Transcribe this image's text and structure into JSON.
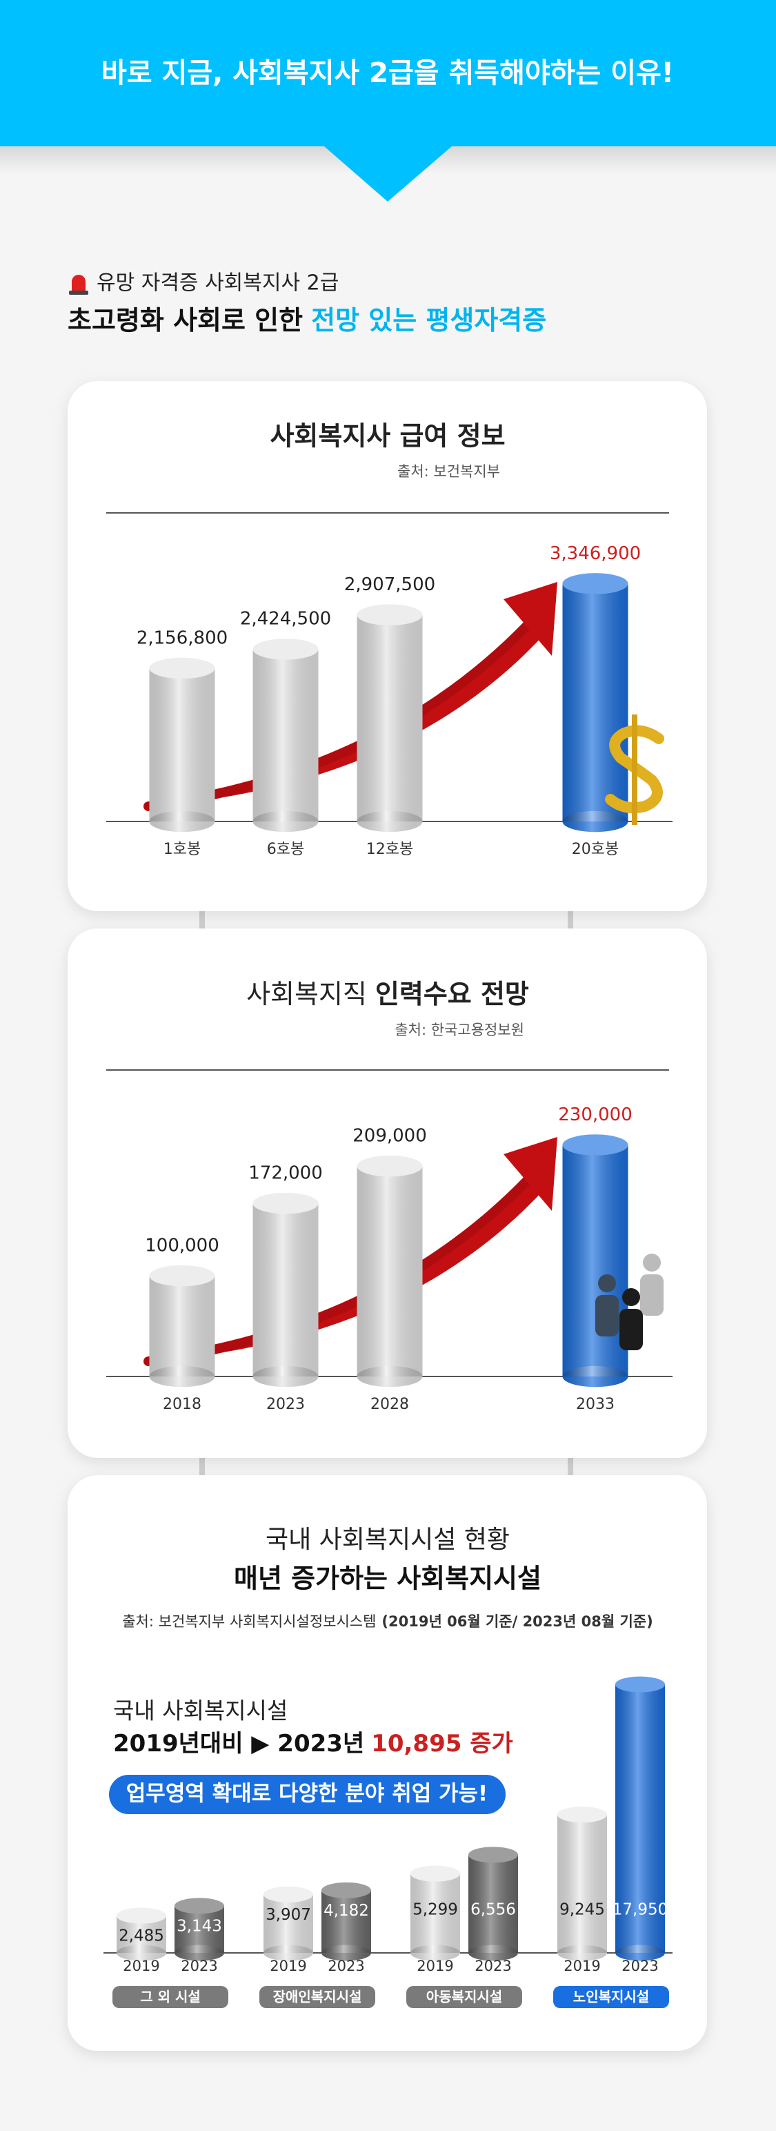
{
  "header": {
    "title": "바로 지금, 사회복지사 2급을 취득해야하는 이유!"
  },
  "intro": {
    "label": "유망 자격증 사회복지사 2급",
    "headline": "초고령화 사회로 인한",
    "headline_emphasis": "전망 있는 평생자격증"
  },
  "chart_data": [
    {
      "type": "bar",
      "title": "사회복지사 급여 정보",
      "source": "출처: 보건복지부",
      "categories": [
        "1호봉",
        "6호봉",
        "12호봉",
        "20호봉"
      ],
      "values": [
        2156800,
        2424500,
        2907500,
        3346900
      ],
      "value_labels": [
        "2,156,800",
        "2,424,500",
        "2,907,500",
        "3,346,900"
      ],
      "color": "#e4e4e4",
      "highlight_index": 3,
      "highlight_color": "#1a6fe0",
      "label_highlight_color": "#cc1f1f",
      "ylim": [
        0,
        3400000
      ]
    },
    {
      "type": "bar",
      "title": "사회복지직",
      "title_emphasis": "인력수요 전망",
      "source": "출처: 한국고용정보원",
      "categories": [
        "2018",
        "2023",
        "2028",
        "2033"
      ],
      "values": [
        100000,
        172000,
        209000,
        230000
      ],
      "value_labels": [
        "100,000",
        "172,000",
        "209,000",
        "230,000"
      ],
      "color": "#e4e4e4",
      "highlight_index": 3,
      "highlight_color": "#1a6fe0",
      "label_highlight_color": "#cc1f1f",
      "ylim": [
        0,
        240000
      ]
    },
    {
      "type": "grouped_bar",
      "title": "국내 사회복지시설 현황",
      "subtitle": "매년 증가하는 사회복지시설",
      "source": "출처: 보건복지부 사회복지시설정보시스템",
      "source_emphasis": "(2019년 06월 기준/ 2023년 08월 기준)",
      "annotation": {
        "label": "국내 사회복지시설",
        "comparison": "2019년대비 ▶ 2023년",
        "increase": "10,895 증가",
        "badge": "업무영역 확대로 다양한 분야 취업 가능!"
      },
      "categories": [
        "그 외 시설",
        "장애인복지시설",
        "아동복지시설",
        "노인복지시설"
      ],
      "series": [
        {
          "name": "2019",
          "color": "#e8e8e8",
          "values": [
            2485,
            3907,
            5299,
            9245
          ],
          "value_labels": [
            "2,485",
            "3,907",
            "5,299",
            "9,245"
          ]
        },
        {
          "name": "2023",
          "color": "#6a6a6a",
          "values": [
            3143,
            4182,
            6556,
            17950
          ],
          "value_labels": [
            "3,143",
            "4,182",
            "6,556",
            "17,950"
          ]
        }
      ],
      "category_color": "#7a7a7a",
      "highlight_index": 3,
      "highlight_color": "#1a6fe0",
      "ylim": [
        0,
        18000
      ]
    }
  ]
}
